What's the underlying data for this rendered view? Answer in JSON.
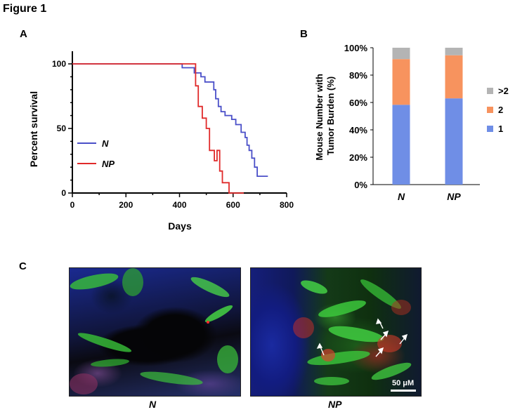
{
  "figure_title": "Figure 1",
  "panels": {
    "a": "A",
    "b": "B",
    "c": "C"
  },
  "chart_data": [
    {
      "type": "line",
      "xlabel": "Days",
      "ylabel": "Percent survival",
      "xlim": [
        0,
        800
      ],
      "ylim": [
        0,
        100
      ],
      "x_ticks": [
        "0",
        "200",
        "400",
        "600",
        "800"
      ],
      "y_ticks": [
        "0",
        "50",
        "100"
      ],
      "legend_position": "left",
      "series": [
        {
          "name": "N",
          "color": "#4a4fc8",
          "step_points": [
            [
              0,
              100
            ],
            [
              410,
              100
            ],
            [
              410,
              97
            ],
            [
              455,
              97
            ],
            [
              455,
              93
            ],
            [
              480,
              93
            ],
            [
              480,
              90
            ],
            [
              495,
              90
            ],
            [
              495,
              86
            ],
            [
              528,
              86
            ],
            [
              528,
              80
            ],
            [
              535,
              80
            ],
            [
              535,
              73
            ],
            [
              545,
              73
            ],
            [
              545,
              67
            ],
            [
              555,
              67
            ],
            [
              555,
              63
            ],
            [
              570,
              63
            ],
            [
              570,
              60
            ],
            [
              595,
              60
            ],
            [
              595,
              57
            ],
            [
              610,
              57
            ],
            [
              610,
              53
            ],
            [
              630,
              53
            ],
            [
              630,
              47
            ],
            [
              645,
              47
            ],
            [
              645,
              43
            ],
            [
              652,
              43
            ],
            [
              652,
              37
            ],
            [
              660,
              37
            ],
            [
              660,
              33
            ],
            [
              670,
              33
            ],
            [
              670,
              27
            ],
            [
              680,
              27
            ],
            [
              680,
              20
            ],
            [
              690,
              20
            ],
            [
              690,
              13
            ],
            [
              730,
              13
            ]
          ]
        },
        {
          "name": "NP",
          "color": "#e02a2a",
          "step_points": [
            [
              0,
              100
            ],
            [
              460,
              100
            ],
            [
              460,
              83
            ],
            [
              470,
              83
            ],
            [
              470,
              67
            ],
            [
              485,
              67
            ],
            [
              485,
              58
            ],
            [
              500,
              58
            ],
            [
              500,
              50
            ],
            [
              512,
              50
            ],
            [
              512,
              33
            ],
            [
              530,
              33
            ],
            [
              530,
              25
            ],
            [
              540,
              25
            ],
            [
              540,
              33
            ],
            [
              550,
              33
            ],
            [
              550,
              17
            ],
            [
              560,
              17
            ],
            [
              560,
              8
            ],
            [
              585,
              8
            ],
            [
              585,
              0
            ],
            [
              640,
              0
            ],
            [
              640,
              0
            ]
          ]
        }
      ]
    },
    {
      "type": "bar",
      "stacked": true,
      "xlabel": "",
      "ylabel": "Mouse Number with Tumor Burden (%)",
      "categories": [
        "N",
        "NP"
      ],
      "ylim": [
        0,
        100
      ],
      "y_ticks": [
        "0%",
        "20%",
        "40%",
        "60%",
        "80%",
        "100%"
      ],
      "legend_position": "right",
      "series": [
        {
          "name": "1",
          "color": "#6f8ee6",
          "values": [
            58.3,
            63.0
          ]
        },
        {
          "name": "2",
          "color": "#f7935e",
          "values": [
            33.4,
            31.5
          ]
        },
        {
          "name": ">2",
          "color": "#b4b4b4",
          "values": [
            8.3,
            5.5
          ]
        }
      ]
    }
  ],
  "micrographs": {
    "left_label": "N",
    "right_label": "NP",
    "scale_bar": "50 μM"
  }
}
